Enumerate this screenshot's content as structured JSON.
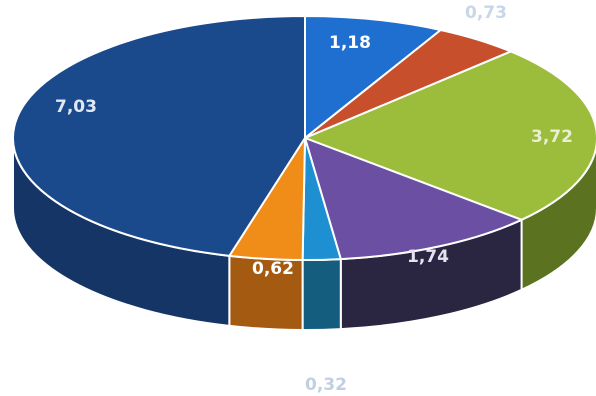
{
  "chart_data": {
    "type": "pie",
    "style": "3d",
    "grid": false,
    "legend": "none",
    "slices": [
      {
        "value": 1.18,
        "label": "1,18",
        "color": "#1f6fd1",
        "side_color": "#134a8f",
        "label_color": "#ffffff"
      },
      {
        "value": 0.73,
        "label": "0,73",
        "color": "#c74f2c",
        "side_color": "#7a2a17",
        "label_color": "#c9d6e8"
      },
      {
        "value": 3.72,
        "label": "3,72",
        "color": "#9cbc3c",
        "side_color": "#5b7220",
        "label_color": "#e8efd2"
      },
      {
        "value": 1.74,
        "label": "1,74",
        "color": "#6a4fa3",
        "side_color": "#2a2540",
        "label_color": "#e6e1f0"
      },
      {
        "value": 0.32,
        "label": "0,32",
        "color": "#1e8fd0",
        "side_color": "#155d7f",
        "label_color": "#c0d0e0"
      },
      {
        "value": 0.62,
        "label": "0,62",
        "color": "#ef8d18",
        "side_color": "#a55a12",
        "label_color": "#ffffff"
      },
      {
        "value": 7.03,
        "label": "7,03",
        "color": "#1b4a8c",
        "side_color": "#143566",
        "label_color": "#e0e8f4"
      }
    ]
  }
}
